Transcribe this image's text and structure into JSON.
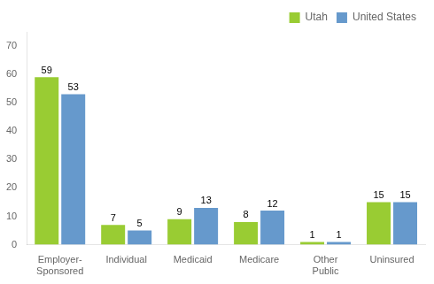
{
  "chart_data": {
    "type": "bar",
    "categories": [
      "Employer-\nSponsored",
      "Individual",
      "Medicaid",
      "Medicare",
      "Other\nPublic",
      "Uninsured"
    ],
    "series": [
      {
        "name": "Utah",
        "color": "#99cc33",
        "values": [
          59,
          7,
          9,
          8,
          1,
          15
        ]
      },
      {
        "name": "United States",
        "color": "#6699cc",
        "values": [
          53,
          5,
          13,
          12,
          1,
          15
        ]
      }
    ],
    "ylim": [
      0,
      75
    ],
    "yticks": [
      0,
      10,
      20,
      30,
      40,
      50,
      60,
      70
    ],
    "grid": false,
    "legend": "upper right",
    "data_labels": true
  }
}
